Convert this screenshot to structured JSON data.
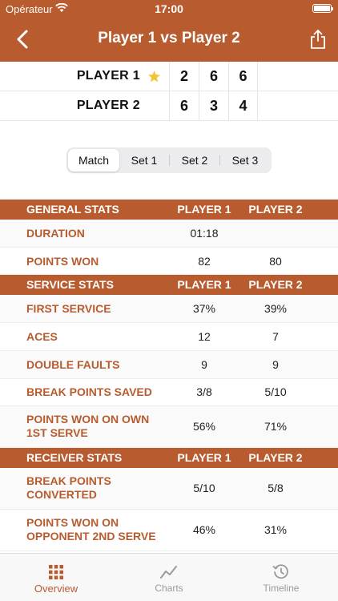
{
  "status_bar": {
    "carrier": "Opérateur",
    "time": "17:00"
  },
  "nav": {
    "title": "Player 1 vs Player 2"
  },
  "score": {
    "rows": [
      {
        "name": "PLAYER 1",
        "sets": [
          "2",
          "6",
          "6"
        ]
      },
      {
        "name": "PLAYER 2",
        "sets": [
          "6",
          "3",
          "4"
        ]
      }
    ]
  },
  "segments": {
    "items": [
      "Match",
      "Set 1",
      "Set 2",
      "Set 3"
    ],
    "selected": "Match"
  },
  "stats": {
    "general": {
      "title": "GENERAL STATS",
      "col1": "PLAYER 1",
      "col2": "PLAYER 2",
      "rows": [
        {
          "label": "DURATION",
          "p1": "01:18",
          "p2": ""
        },
        {
          "label": "POINTS WON",
          "p1": "82",
          "p2": "80"
        }
      ]
    },
    "service": {
      "title": "SERVICE STATS",
      "col1": "PLAYER 1",
      "col2": "PLAYER 2",
      "rows": [
        {
          "label": "FIRST SERVICE",
          "p1": "37%",
          "p2": "39%"
        },
        {
          "label": "ACES",
          "p1": "12",
          "p2": "7"
        },
        {
          "label": "DOUBLE FAULTS",
          "p1": "9",
          "p2": "9"
        },
        {
          "label": "BREAK POINTS SAVED",
          "p1": "3/8",
          "p2": "5/10"
        },
        {
          "label": "POINTS WON ON OWN 1ST SERVE",
          "p1": "56%",
          "p2": "71%"
        }
      ]
    },
    "receiver": {
      "title": "RECEIVER STATS",
      "col1": "PLAYER 1",
      "col2": "PLAYER 2",
      "rows": [
        {
          "label": "BREAK POINTS CONVERTED",
          "p1": "5/10",
          "p2": "5/8"
        },
        {
          "label": "POINTS WON ON OPPONENT 2ND SERVE",
          "p1": "46%",
          "p2": "31%"
        }
      ]
    }
  },
  "tabs": [
    {
      "label": "Overview",
      "icon": "grid-icon"
    },
    {
      "label": "Charts",
      "icon": "chart-icon"
    },
    {
      "label": "Timeline",
      "icon": "history-icon"
    }
  ],
  "colors": {
    "accent": "#b85c2f",
    "star": "#f2c438",
    "inactive": "#9a9a9a"
  }
}
